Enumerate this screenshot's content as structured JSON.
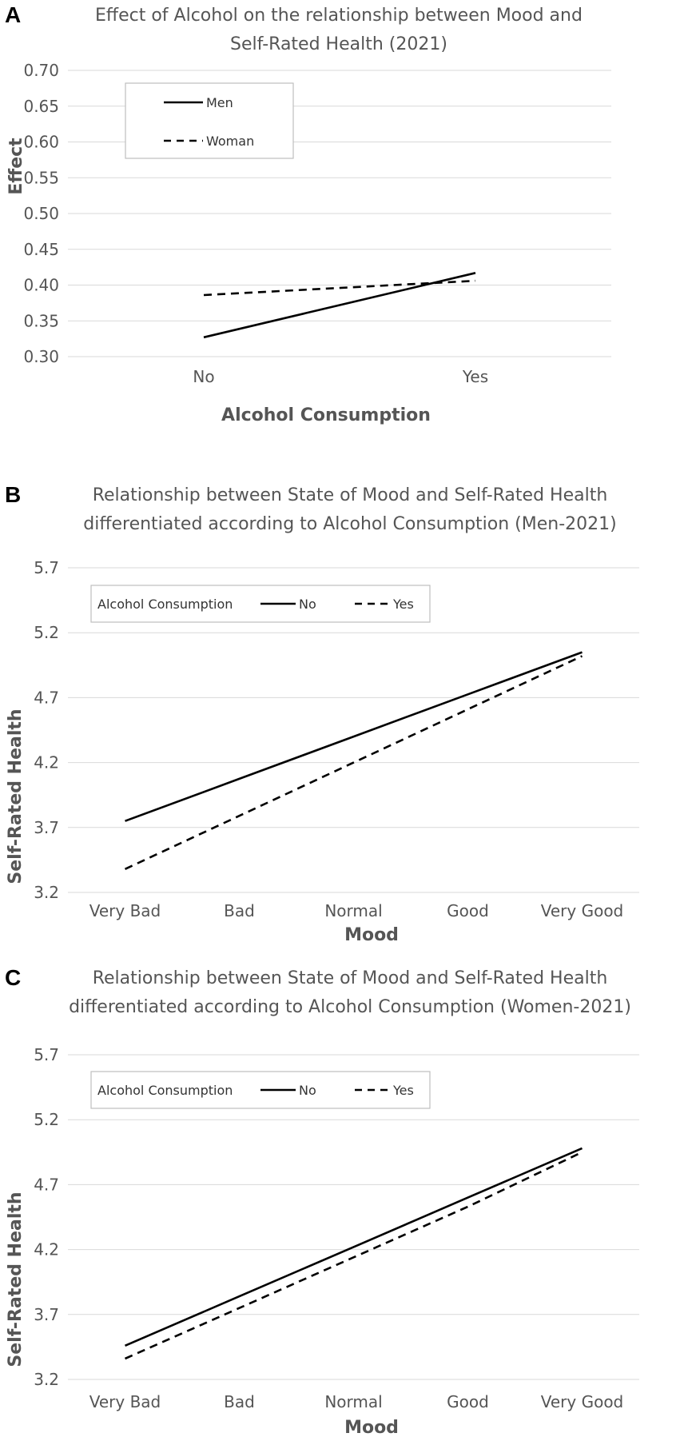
{
  "chart_data": [
    {
      "panel": "A",
      "type": "line",
      "title": [
        "Effect of Alcohol on the relationship between Mood and",
        "Self-Rated Health (2021)"
      ],
      "xlabel": "Alcohol Consumption",
      "ylabel": "Effect",
      "categories": [
        "No",
        "Yes"
      ],
      "ylim": [
        0.3,
        0.7
      ],
      "yticks": [
        "0.30",
        "0.35",
        "0.40",
        "0.45",
        "0.50",
        "0.55",
        "0.60",
        "0.65",
        "0.70"
      ],
      "grid": true,
      "legend_title": "",
      "legend_position": "top-left",
      "series": [
        {
          "name": "Men",
          "style": "solid",
          "values": [
            0.327,
            0.417
          ]
        },
        {
          "name": "Woman",
          "style": "dashed",
          "values": [
            0.386,
            0.406
          ]
        }
      ]
    },
    {
      "panel": "B",
      "type": "line",
      "title": [
        "Relationship between State of Mood and Self-Rated Health",
        "differentiated according to Alcohol Consumption (Men-2021)"
      ],
      "xlabel": "Mood",
      "ylabel": "Self-Rated Health",
      "categories": [
        "Very Bad",
        "Bad",
        "Normal",
        "Good",
        "Very Good"
      ],
      "ylim": [
        3.2,
        5.7
      ],
      "yticks": [
        "3.2",
        "3.7",
        "4.2",
        "4.7",
        "5.2",
        "5.7"
      ],
      "grid": true,
      "legend_title": "Alcohol Consumption",
      "legend_position": "top-left",
      "series": [
        {
          "name": "No",
          "style": "solid",
          "values": [
            3.75,
            4.075,
            4.4,
            4.725,
            5.05
          ]
        },
        {
          "name": "Yes",
          "style": "dashed",
          "values": [
            3.38,
            3.79,
            4.2,
            4.61,
            5.02
          ]
        }
      ]
    },
    {
      "panel": "C",
      "type": "line",
      "title": [
        "Relationship between State of Mood and Self-Rated Health",
        "differentiated according to Alcohol Consumption (Women-2021)"
      ],
      "xlabel": "Mood",
      "ylabel": "Self-Rated Health",
      "categories": [
        "Very Bad",
        "Bad",
        "Normal",
        "Good",
        "Very Good"
      ],
      "ylim": [
        3.2,
        5.7
      ],
      "yticks": [
        "3.2",
        "3.7",
        "4.2",
        "4.7",
        "5.2",
        "5.7"
      ],
      "grid": true,
      "legend_title": "Alcohol Consumption",
      "legend_position": "top-left",
      "series": [
        {
          "name": "No",
          "style": "solid",
          "values": [
            3.46,
            3.84,
            4.22,
            4.6,
            4.98
          ]
        },
        {
          "name": "Yes",
          "style": "dashed",
          "values": [
            3.36,
            3.75,
            4.14,
            4.53,
            4.95
          ]
        }
      ]
    }
  ]
}
